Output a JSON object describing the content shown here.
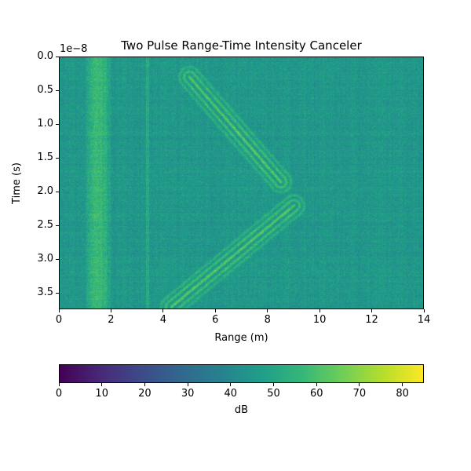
{
  "chart_data": {
    "type": "heatmap",
    "title": "Two Pulse Range-Time Intensity Canceler",
    "xlabel": "Range (m)",
    "ylabel": "Time (s)",
    "y_offset_label": "1e−8",
    "xlim": [
      0,
      14
    ],
    "ylim": [
      3.74,
      0.0
    ],
    "x_ticks": [
      "0",
      "2",
      "4",
      "6",
      "8",
      "10",
      "12",
      "14"
    ],
    "y_ticks": [
      "0.0",
      "0.5",
      "1.0",
      "1.5",
      "2.0",
      "2.5",
      "3.0",
      "3.5"
    ],
    "colormap": "viridis",
    "background_db": 45,
    "features": [
      {
        "name": "stationary-band",
        "range_m": [
          1.0,
          2.0
        ],
        "time": [
          0.0,
          3.74
        ],
        "db": 60
      },
      {
        "name": "stationary-line",
        "range_m": [
          3.35,
          3.45
        ],
        "time": [
          0.0,
          3.74
        ],
        "db": 55
      },
      {
        "name": "outbound-target",
        "from": [
          5.0,
          0.3
        ],
        "to": [
          8.5,
          1.85
        ],
        "db": 72
      },
      {
        "name": "inbound-target",
        "from": [
          9.0,
          2.2
        ],
        "to": [
          4.3,
          3.7
        ],
        "db": 72
      }
    ],
    "colorbar": {
      "label": "dB",
      "range": [
        0,
        85
      ],
      "ticks": [
        "0",
        "10",
        "20",
        "30",
        "40",
        "50",
        "60",
        "70",
        "80"
      ]
    }
  }
}
